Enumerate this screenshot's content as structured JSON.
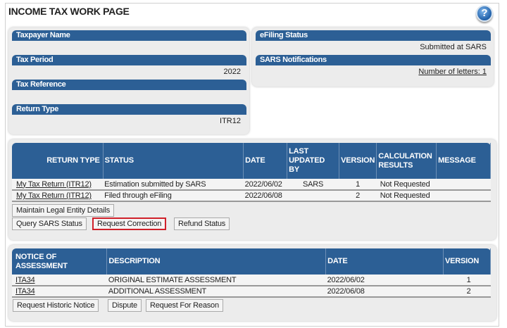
{
  "page": {
    "title": "INCOME TAX WORK PAGE",
    "help_icon": "help-icon",
    "header_color": "#2c5f95",
    "highlight_color": "#d0202a"
  },
  "info": {
    "taxpayer_name": {
      "label": "Taxpayer Name",
      "value": ""
    },
    "tax_period": {
      "label": "Tax Period",
      "value": "2022"
    },
    "tax_reference": {
      "label": "Tax Reference",
      "value": ""
    },
    "return_type": {
      "label": "Return Type",
      "value": "ITR12"
    },
    "efiling_status": {
      "label": "eFiling Status",
      "value": "Submitted at SARS"
    },
    "sars_notifications": {
      "label": "SARS Notifications",
      "value": "Number of letters: 1"
    }
  },
  "returns": {
    "headers": [
      "RETURN TYPE",
      "STATUS",
      "DATE",
      "LAST UPDATED BY",
      "VERSION",
      "CALCULATION RESULTS",
      "MESSAGE"
    ],
    "rows": [
      [
        "My Tax Return (ITR12)",
        "Estimation submitted by SARS",
        "2022/06/02",
        "SARS",
        "1",
        "Not Requested",
        ""
      ],
      [
        "My Tax Return (ITR12)",
        "Filed through eFiling",
        "2022/06/08",
        "",
        "2",
        "Not Requested",
        ""
      ]
    ],
    "buttons": [
      "Maintain Legal Entity Details",
      "Query SARS Status",
      "Request Correction",
      "Refund Status"
    ]
  },
  "assessments": {
    "headers": [
      "NOTICE OF ASSESSMENT",
      "DESCRIPTION",
      "DATE",
      "VERSION"
    ],
    "rows": [
      [
        "ITA34",
        "ORIGINAL ESTIMATE ASSESSMENT",
        "2022/06/02",
        "1"
      ],
      [
        "ITA34",
        "ADDITIONAL ASSESSMENT",
        "2022/06/08",
        "2"
      ]
    ],
    "buttons": [
      "Request Historic Notice",
      "Dispute",
      "Request For Reason"
    ]
  }
}
